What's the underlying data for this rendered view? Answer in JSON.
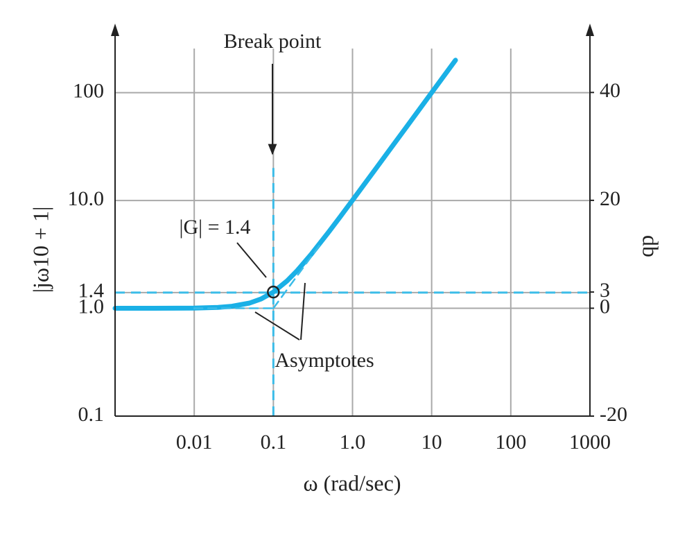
{
  "chart_data": {
    "type": "line",
    "x_label": "ω (rad/sec)",
    "y_label": "|jω10 + 1|",
    "y2_label": "db",
    "log_x": true,
    "log_y": true,
    "grid": true,
    "xlim": [
      0.001,
      1000
    ],
    "xticks": [
      0.01,
      0.1,
      {
        "value": 1,
        "label": "1.0"
      },
      10,
      100,
      1000
    ],
    "ylim": [
      0.1,
      400
    ],
    "yticks": [
      0.1,
      {
        "value": 1,
        "label": "1.0"
      },
      1.4,
      {
        "value": 10,
        "label": "10.0"
      },
      100
    ],
    "y2lim": [
      -20,
      52
    ],
    "y2ticks": [
      -20,
      0,
      3,
      20,
      40
    ],
    "series": [
      {
        "color": "#1ab0e6",
        "style": "solid",
        "x": [
          0.001,
          0.003,
          0.01,
          0.02,
          0.03,
          0.05,
          0.07,
          0.1,
          0.15,
          0.2,
          0.3,
          0.5,
          0.7,
          1,
          2,
          3,
          5,
          10,
          20
        ],
        "values": [
          1.0,
          1.0,
          1.005,
          1.02,
          1.044,
          1.118,
          1.221,
          1.414,
          1.803,
          2.236,
          3.162,
          5.099,
          7.071,
          10.05,
          20.02,
          30.02,
          50.01,
          100.0,
          200.0
        ]
      },
      {
        "color": "#3bbce8",
        "style": "dashed",
        "x": [
          0.01,
          0.1
        ],
        "values": [
          1,
          1
        ]
      },
      {
        "color": "#3bbce8",
        "style": "dashed",
        "x": [
          0.1,
          0.4
        ],
        "values": [
          1,
          4
        ]
      }
    ],
    "hline": {
      "y": 1.4,
      "color": "#3bbce8"
    },
    "vline": {
      "x": 0.1,
      "from": 0.1,
      "to": 20,
      "color": "#3bbce8",
      "label": "Break point"
    },
    "marker": {
      "x": 0.1,
      "y": 1.414,
      "label": "|G| = 1.4"
    },
    "annotation": "Asymptotes"
  }
}
